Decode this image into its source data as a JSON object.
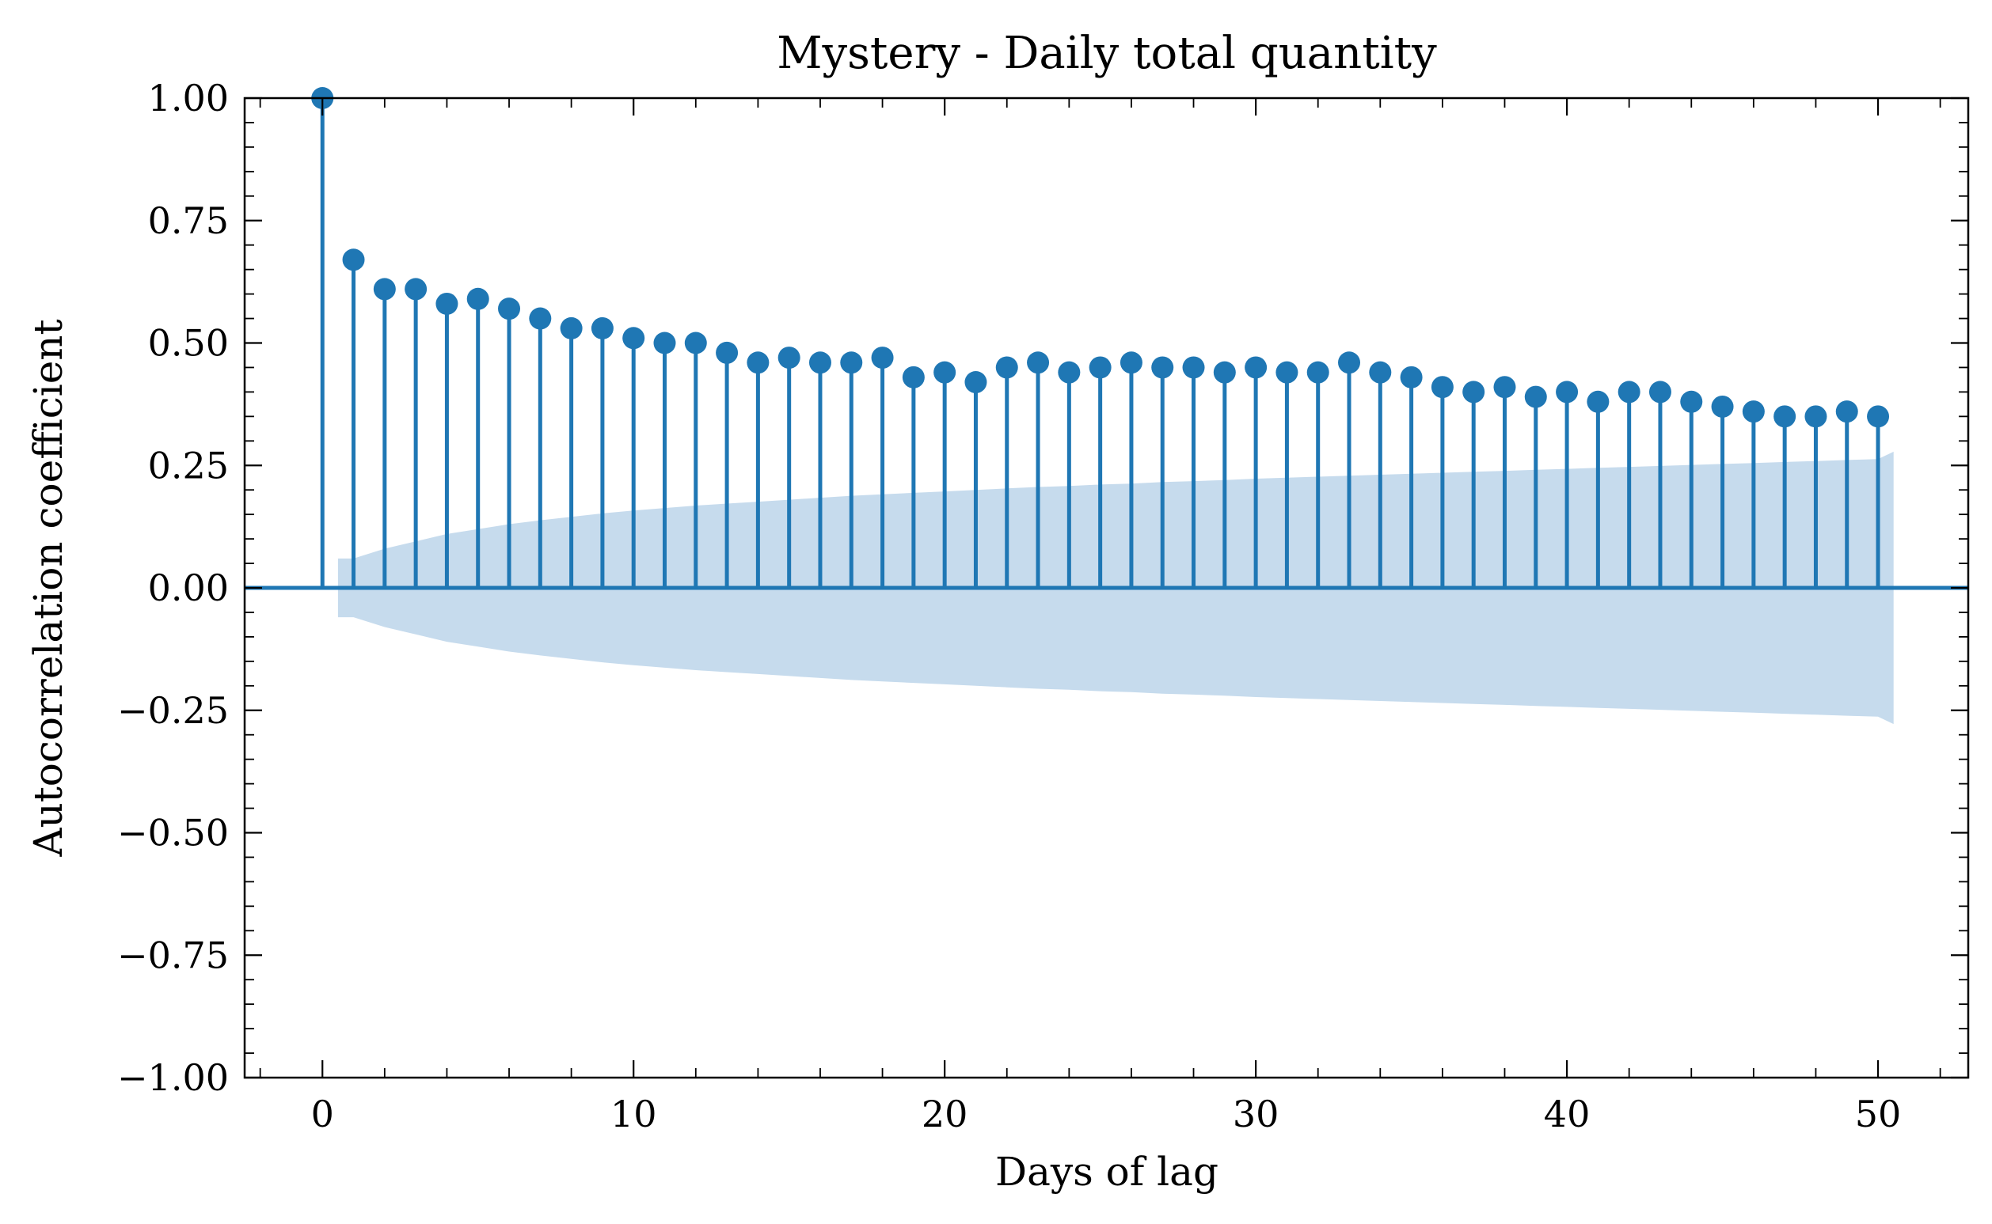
{
  "chart_data": {
    "type": "acf-stem",
    "title": "Mystery - Daily total quantity",
    "xlabel": "Days of lag",
    "ylabel": "Autocorrelation coefficient",
    "xlim": [
      -2.5,
      52.9
    ],
    "ylim": [
      -1.0,
      1.0
    ],
    "x_ticks": [
      0,
      10,
      20,
      30,
      40,
      50
    ],
    "x_tick_labels": [
      "0",
      "10",
      "20",
      "30",
      "40",
      "50"
    ],
    "y_ticks": [
      1.0,
      0.75,
      0.5,
      0.25,
      0.0,
      -0.25,
      -0.5,
      -0.75,
      -1.0
    ],
    "y_tick_labels": [
      "1.00",
      "0.75",
      "0.50",
      "0.25",
      "0.00",
      "−0.25",
      "−0.50",
      "−0.75",
      "−1.00"
    ],
    "grid": false,
    "colors": {
      "stem": "#1f77b4",
      "confidence_band": "#c6dbed",
      "axes": "#000000"
    },
    "lags": [
      0,
      1,
      2,
      3,
      4,
      5,
      6,
      7,
      8,
      9,
      10,
      11,
      12,
      13,
      14,
      15,
      16,
      17,
      18,
      19,
      20,
      21,
      22,
      23,
      24,
      25,
      26,
      27,
      28,
      29,
      30,
      31,
      32,
      33,
      34,
      35,
      36,
      37,
      38,
      39,
      40,
      41,
      42,
      43,
      44,
      45,
      46,
      47,
      48,
      49,
      50
    ],
    "values": [
      1.0,
      0.67,
      0.61,
      0.61,
      0.58,
      0.59,
      0.57,
      0.55,
      0.53,
      0.53,
      0.51,
      0.5,
      0.5,
      0.48,
      0.46,
      0.47,
      0.46,
      0.46,
      0.47,
      0.43,
      0.44,
      0.42,
      0.45,
      0.46,
      0.44,
      0.45,
      0.46,
      0.45,
      0.45,
      0.44,
      0.45,
      0.44,
      0.44,
      0.46,
      0.44,
      0.43,
      0.41,
      0.4,
      0.41,
      0.39,
      0.4,
      0.38,
      0.4,
      0.4,
      0.38,
      0.37,
      0.36,
      0.35,
      0.35,
      0.36,
      0.35
    ],
    "confidence_band": {
      "lags": [
        0.5,
        1,
        2,
        3,
        4,
        5,
        6,
        7,
        8,
        9,
        10,
        11,
        12,
        13,
        14,
        15,
        16,
        17,
        18,
        19,
        20,
        21,
        22,
        23,
        24,
        25,
        26,
        27,
        28,
        29,
        30,
        31,
        32,
        33,
        34,
        35,
        36,
        37,
        38,
        39,
        40,
        41,
        42,
        43,
        44,
        45,
        46,
        47,
        48,
        49,
        50,
        50.5
      ],
      "upper": [
        0.06,
        0.06,
        0.08,
        0.095,
        0.11,
        0.12,
        0.13,
        0.138,
        0.145,
        0.152,
        0.158,
        0.163,
        0.168,
        0.172,
        0.176,
        0.18,
        0.184,
        0.188,
        0.191,
        0.194,
        0.197,
        0.2,
        0.203,
        0.206,
        0.208,
        0.211,
        0.213,
        0.216,
        0.218,
        0.22,
        0.223,
        0.225,
        0.227,
        0.229,
        0.231,
        0.233,
        0.235,
        0.237,
        0.239,
        0.241,
        0.243,
        0.245,
        0.247,
        0.249,
        0.251,
        0.253,
        0.255,
        0.257,
        0.259,
        0.261,
        0.263,
        0.278
      ]
    }
  }
}
